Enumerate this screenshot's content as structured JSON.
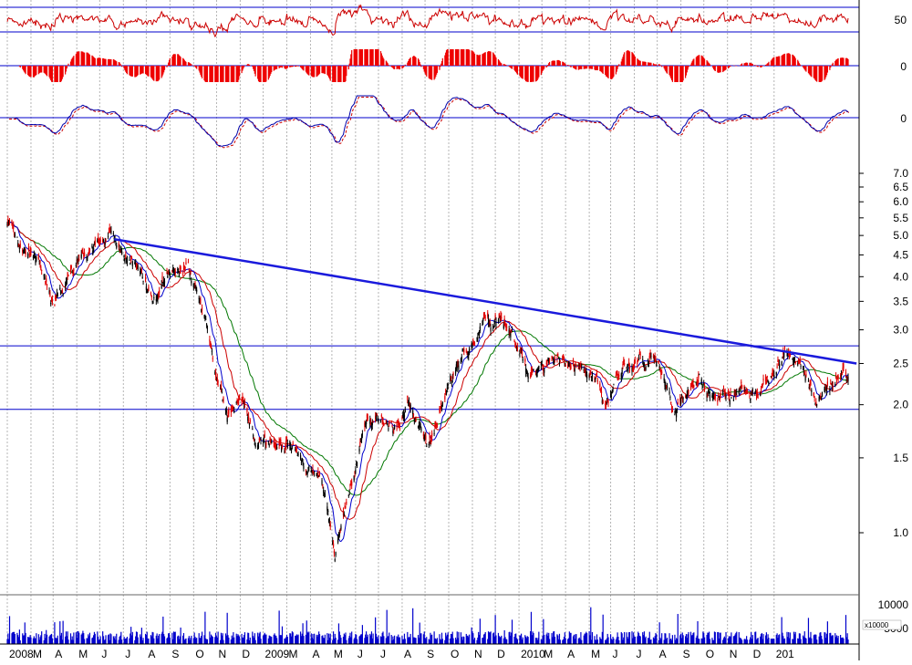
{
  "chart_data": {
    "type": "line",
    "title": "",
    "colors": {
      "price_up": "#000000",
      "price_down": "#e00000",
      "ma_short": "#0000cc",
      "ma_mid": "#cc0000",
      "ma_long": "#007700",
      "trendline": "#1a1adc",
      "rsi": "#cc0000",
      "histogram": "#ee0000",
      "macd": "#0000aa",
      "volume": "#0000cc",
      "grid": "#b4b4b4"
    },
    "x_axis": {
      "labels": [
        "2008",
        "M",
        "A",
        "M",
        "J",
        "J",
        "A",
        "S",
        "O",
        "N",
        "D",
        "2009",
        "M",
        "A",
        "M",
        "J",
        "J",
        "A",
        "S",
        "O",
        "N",
        "D",
        "2010",
        "M",
        "A",
        "M",
        "J",
        "J",
        "A",
        "S",
        "O",
        "N",
        "D",
        "201"
      ]
    },
    "panels": {
      "rsi": {
        "tick_labels": [
          "50"
        ]
      },
      "histogram": {
        "tick_labels": [
          "0"
        ]
      },
      "macd": {
        "tick_labels": [
          "0"
        ]
      },
      "price": {
        "scale": "log",
        "ylim": [
          0.85,
          7.2
        ],
        "tick_labels": [
          "7.0",
          "6.5",
          "6.0",
          "5.5",
          "5.0",
          "4.5",
          "4.0",
          "3.5",
          "3.0",
          "2.5",
          "2.0",
          "1.5",
          "1.0"
        ],
        "tick_values": [
          7.0,
          6.5,
          6.0,
          5.5,
          5.0,
          4.5,
          4.0,
          3.5,
          3.0,
          2.5,
          2.0,
          1.5,
          1.0
        ],
        "support_level": 1.95,
        "resistance_level": 2.75,
        "trendline": [
          {
            "x": "2008-05-20",
            "y": 4.9
          },
          {
            "x": "2011-01-05",
            "y": 2.5
          }
        ],
        "close_path": [
          {
            "x": "2008-01-01",
            "y": 5.3
          },
          {
            "x": "2008-01-20",
            "y": 4.6
          },
          {
            "x": "2008-02-10",
            "y": 4.3
          },
          {
            "x": "2008-03-01",
            "y": 3.4
          },
          {
            "x": "2008-03-20",
            "y": 3.9
          },
          {
            "x": "2008-04-15",
            "y": 4.5
          },
          {
            "x": "2008-05-15",
            "y": 4.9
          },
          {
            "x": "2008-06-05",
            "y": 4.6
          },
          {
            "x": "2008-06-25",
            "y": 4.0
          },
          {
            "x": "2008-07-15",
            "y": 3.5
          },
          {
            "x": "2008-08-05",
            "y": 4.3
          },
          {
            "x": "2008-08-25",
            "y": 4.1
          },
          {
            "x": "2008-09-15",
            "y": 3.3
          },
          {
            "x": "2008-10-01",
            "y": 2.3
          },
          {
            "x": "2008-10-15",
            "y": 1.8
          },
          {
            "x": "2008-11-01",
            "y": 2.1
          },
          {
            "x": "2008-11-20",
            "y": 1.6
          },
          {
            "x": "2008-12-10",
            "y": 1.7
          },
          {
            "x": "2009-01-01",
            "y": 1.65
          },
          {
            "x": "2009-01-25",
            "y": 1.5
          },
          {
            "x": "2009-02-15",
            "y": 1.3
          },
          {
            "x": "2009-03-05",
            "y": 0.88
          },
          {
            "x": "2009-03-20",
            "y": 1.2
          },
          {
            "x": "2009-04-10",
            "y": 1.7
          },
          {
            "x": "2009-05-01",
            "y": 1.9
          },
          {
            "x": "2009-05-20",
            "y": 1.75
          },
          {
            "x": "2009-06-10",
            "y": 2.05
          },
          {
            "x": "2009-07-05",
            "y": 1.55
          },
          {
            "x": "2009-07-25",
            "y": 2.1
          },
          {
            "x": "2009-08-20",
            "y": 2.7
          },
          {
            "x": "2009-09-20",
            "y": 3.2
          },
          {
            "x": "2009-10-10",
            "y": 3.35
          },
          {
            "x": "2009-10-25",
            "y": 2.8
          },
          {
            "x": "2009-11-15",
            "y": 2.3
          },
          {
            "x": "2009-12-15",
            "y": 2.4
          },
          {
            "x": "2010-01-10",
            "y": 2.6
          },
          {
            "x": "2010-02-05",
            "y": 2.45
          },
          {
            "x": "2010-02-20",
            "y": 2.0
          },
          {
            "x": "2010-03-15",
            "y": 2.4
          },
          {
            "x": "2010-04-15",
            "y": 2.5
          },
          {
            "x": "2010-05-01",
            "y": 2.55
          },
          {
            "x": "2010-05-20",
            "y": 2.05
          },
          {
            "x": "2010-06-05",
            "y": 2.0
          },
          {
            "x": "2010-06-25",
            "y": 2.35
          },
          {
            "x": "2010-07-20",
            "y": 2.1
          },
          {
            "x": "2010-08-20",
            "y": 2.2
          },
          {
            "x": "2010-09-10",
            "y": 2.15
          },
          {
            "x": "2010-10-05",
            "y": 2.5
          },
          {
            "x": "2010-10-20",
            "y": 2.7
          },
          {
            "x": "2010-11-05",
            "y": 2.45
          },
          {
            "x": "2010-11-25",
            "y": 2.1
          },
          {
            "x": "2010-12-15",
            "y": 2.25
          },
          {
            "x": "2010-12-31",
            "y": 2.45
          },
          {
            "x": "2011-01-05",
            "y": 2.4
          }
        ]
      },
      "volume": {
        "tick_labels": [
          "10000",
          "5000"
        ],
        "unit_label": "x10000"
      }
    }
  }
}
